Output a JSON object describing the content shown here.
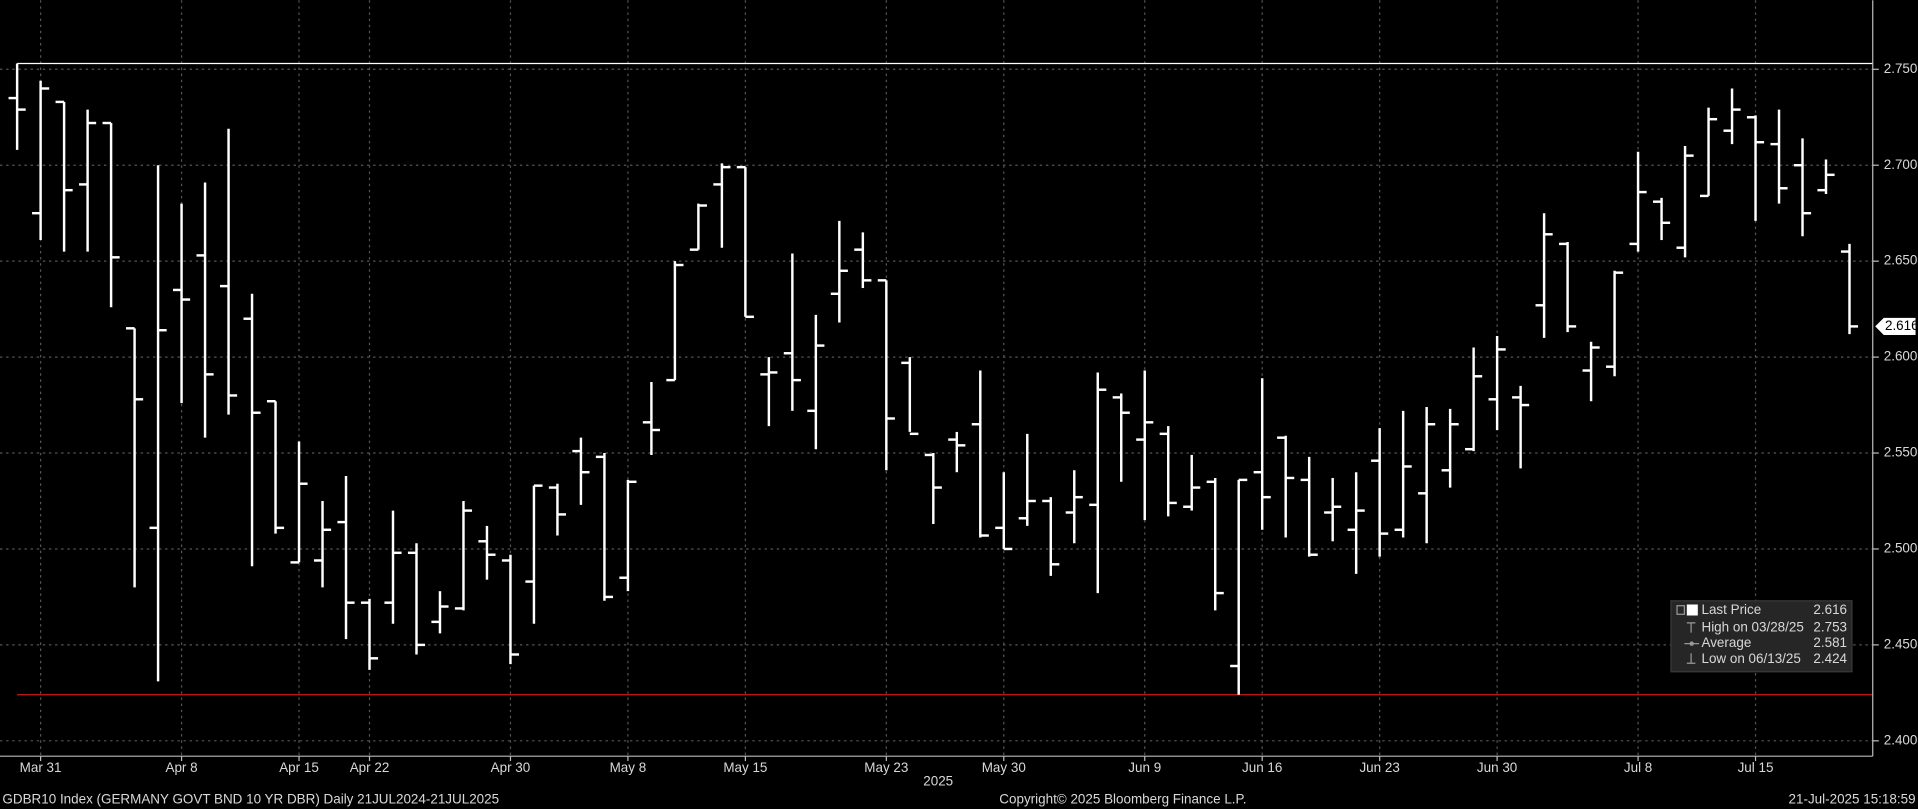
{
  "chart_data": {
    "type": "ohlc",
    "subtitle": "GDBR10 Index (GERMANY GOVT BND 10 YR DBR)  Daily 21JUL2024-21JUL2025",
    "source": "Copyright© 2025 Bloomberg Finance L.P.",
    "timestamp": "21-Jul-2025 15:18:59",
    "x_label": "2025",
    "color": "#ffffff",
    "categories": [
      null,
      "Mar 31",
      null,
      null,
      null,
      null,
      null,
      "Apr 8",
      null,
      null,
      null,
      null,
      "Apr 15",
      null,
      null,
      "Apr 22",
      null,
      null,
      null,
      null,
      null,
      "Apr 30",
      null,
      null,
      null,
      null,
      "May 8",
      null,
      null,
      null,
      null,
      "May 15",
      null,
      null,
      null,
      null,
      null,
      "May 23",
      null,
      null,
      null,
      null,
      "May 30",
      null,
      null,
      null,
      null,
      null,
      "Jun 9",
      null,
      null,
      null,
      null,
      "Jun 16",
      null,
      null,
      null,
      null,
      "Jun 23",
      null,
      null,
      null,
      null,
      "Jun 30",
      null,
      null,
      null,
      null,
      null,
      "Jul 8",
      null,
      null,
      null,
      null,
      "Jul 15",
      null,
      null,
      null,
      null
    ],
    "open": [
      2.735,
      2.675,
      2.733,
      2.69,
      2.722,
      2.615,
      2.511,
      2.635,
      2.653,
      2.637,
      2.62,
      2.577,
      2.493,
      2.494,
      2.514,
      2.472,
      2.472,
      2.498,
      2.462,
      2.469,
      2.504,
      2.494,
      2.483,
      2.532,
      2.551,
      2.548,
      2.485,
      2.566,
      2.588,
      2.656,
      2.69,
      2.699,
      2.591,
      2.602,
      2.572,
      2.633,
      2.656,
      2.64,
      2.597,
      2.549,
      2.557,
      2.565,
      2.511,
      2.516,
      2.525,
      2.519,
      2.523,
      2.579,
      2.557,
      2.56,
      2.522,
      2.535,
      2.439,
      2.54,
      2.558,
      2.536,
      2.519,
      2.51,
      2.546,
      2.51,
      2.529,
      2.541,
      2.552,
      2.578,
      2.579,
      2.627,
      2.659,
      2.593,
      2.595,
      2.659,
      2.681,
      2.657,
      2.684,
      2.718,
      2.725,
      2.711,
      2.7,
      2.687,
      2.655
    ],
    "high": [
      2.753,
      2.744,
      2.733,
      2.729,
      2.722,
      2.615,
      2.7,
      2.68,
      2.691,
      2.719,
      2.633,
      2.577,
      2.556,
      2.525,
      2.538,
      2.474,
      2.52,
      2.503,
      2.478,
      2.525,
      2.512,
      2.497,
      2.533,
      2.534,
      2.558,
      2.55,
      2.536,
      2.587,
      2.65,
      2.68,
      2.701,
      2.699,
      2.6,
      2.654,
      2.622,
      2.671,
      2.665,
      2.64,
      2.6,
      2.55,
      2.561,
      2.593,
      2.54,
      2.56,
      2.527,
      2.541,
      2.592,
      2.581,
      2.593,
      2.564,
      2.549,
      2.537,
      2.536,
      2.589,
      2.559,
      2.548,
      2.537,
      2.54,
      2.563,
      2.572,
      2.574,
      2.573,
      2.605,
      2.611,
      2.585,
      2.675,
      2.66,
      2.608,
      2.645,
      2.707,
      2.683,
      2.71,
      2.73,
      2.74,
      2.726,
      2.729,
      2.714,
      2.703,
      2.659
    ],
    "low": [
      2.708,
      2.661,
      2.655,
      2.655,
      2.626,
      2.48,
      2.431,
      2.576,
      2.558,
      2.57,
      2.491,
      2.508,
      2.493,
      2.48,
      2.453,
      2.437,
      2.461,
      2.445,
      2.456,
      2.468,
      2.484,
      2.44,
      2.461,
      2.507,
      2.523,
      2.473,
      2.478,
      2.549,
      2.588,
      2.656,
      2.657,
      2.621,
      2.564,
      2.572,
      2.552,
      2.618,
      2.636,
      2.541,
      2.561,
      2.513,
      2.54,
      2.506,
      2.5,
      2.512,
      2.486,
      2.503,
      2.477,
      2.535,
      2.515,
      2.517,
      2.52,
      2.468,
      2.424,
      2.51,
      2.506,
      2.496,
      2.504,
      2.487,
      2.496,
      2.506,
      2.503,
      2.532,
      2.551,
      2.562,
      2.542,
      2.61,
      2.613,
      2.577,
      2.59,
      2.655,
      2.661,
      2.652,
      2.684,
      2.711,
      2.671,
      2.68,
      2.663,
      2.685,
      2.612
    ],
    "close": [
      2.729,
      2.74,
      2.687,
      2.722,
      2.652,
      2.578,
      2.614,
      2.63,
      2.591,
      2.58,
      2.571,
      2.511,
      2.534,
      2.51,
      2.472,
      2.443,
      2.498,
      2.45,
      2.47,
      2.52,
      2.497,
      2.445,
      2.533,
      2.518,
      2.54,
      2.475,
      2.535,
      2.562,
      2.648,
      2.679,
      2.699,
      2.621,
      2.592,
      2.588,
      2.606,
      2.645,
      2.64,
      2.568,
      2.56,
      2.532,
      2.554,
      2.507,
      2.5,
      2.525,
      2.492,
      2.527,
      2.583,
      2.571,
      2.566,
      2.524,
      2.532,
      2.477,
      2.536,
      2.527,
      2.537,
      2.497,
      2.522,
      2.52,
      2.508,
      2.543,
      2.565,
      2.565,
      2.59,
      2.604,
      2.575,
      2.664,
      2.616,
      2.605,
      2.644,
      2.686,
      2.67,
      2.705,
      2.724,
      2.729,
      2.712,
      2.688,
      2.675,
      2.695,
      2.616
    ],
    "ylim": [
      2.392,
      2.786
    ],
    "yticks": [
      {
        "value": 2.4,
        "label": "2.400"
      },
      {
        "value": 2.45,
        "label": "2.450"
      },
      {
        "value": 2.5,
        "label": "2.500"
      },
      {
        "value": 2.55,
        "label": "2.550"
      },
      {
        "value": 2.6,
        "label": "2.600"
      },
      {
        "value": 2.65,
        "label": "2.650"
      },
      {
        "value": 2.7,
        "label": "2.700"
      },
      {
        "value": 2.75,
        "label": "2.750"
      }
    ],
    "grid": true,
    "legend_position": "lower right",
    "stats": [
      {
        "label": "Last Price",
        "value": 2.616
      },
      {
        "label": "High on 03/28/25",
        "value": 2.753
      },
      {
        "label": "Average",
        "value": 2.581
      },
      {
        "label": "Low on 06/13/25",
        "value": 2.424
      }
    ],
    "high_line_color": "#ffffff",
    "low_line_color": "#d11a1a"
  }
}
